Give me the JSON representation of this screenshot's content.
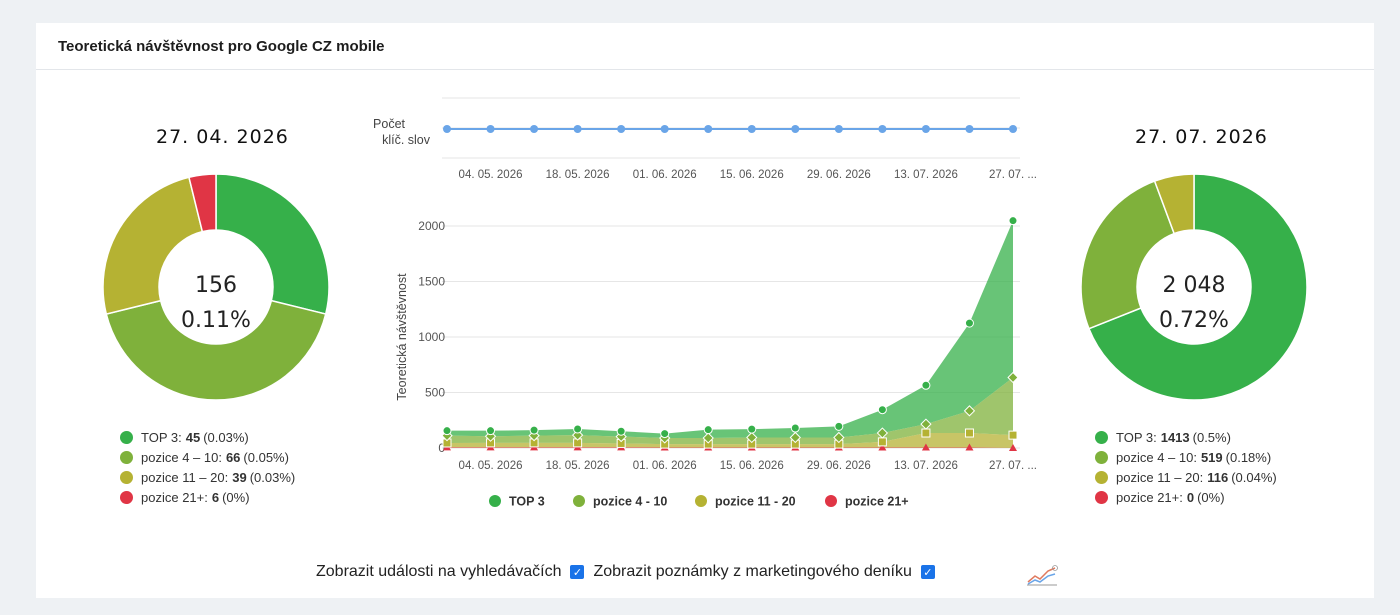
{
  "card": {
    "title": "Teoretická návštěvnost pro Google CZ mobile"
  },
  "left_pie": {
    "date": "27. 04. 2026",
    "total": "156",
    "percent": "0.11%",
    "legend": [
      {
        "label": "TOP 3:",
        "value": "45",
        "pct": "(0.03%)",
        "color": "#36b04a"
      },
      {
        "label": "pozice 4 – 10:",
        "value": "66",
        "pct": "(0.05%)",
        "color": "#7fb13b"
      },
      {
        "label": "pozice 11 – 20:",
        "value": "39",
        "pct": "(0.03%)",
        "color": "#b5b233"
      },
      {
        "label": "pozice 21+:",
        "value": "6",
        "pct": "(0%)",
        "color": "#e03545"
      }
    ]
  },
  "right_pie": {
    "date": "27. 07. 2026",
    "total": "2 048",
    "percent": "0.72%",
    "legend": [
      {
        "label": "TOP 3:",
        "value": "1413",
        "pct": "(0.5%)",
        "color": "#36b04a"
      },
      {
        "label": "pozice 4 – 10:",
        "value": "519",
        "pct": "(0.18%)",
        "color": "#7fb13b"
      },
      {
        "label": "pozice 11 – 20:",
        "value": "116",
        "pct": "(0.04%)",
        "color": "#b5b233"
      },
      {
        "label": "pozice 21+:",
        "value": "0",
        "pct": "(0%)",
        "color": "#e03545"
      }
    ]
  },
  "chart_data": [
    {
      "type": "pie",
      "title": "27. 04. 2026",
      "categories": [
        "TOP 3",
        "pozice 4 – 10",
        "pozice 11 – 20",
        "pozice 21+"
      ],
      "values": [
        45,
        66,
        39,
        6
      ],
      "colors": [
        "#36b04a",
        "#7fb13b",
        "#b5b233",
        "#e03545"
      ]
    },
    {
      "type": "line",
      "ylabel_line1": "Počet",
      "ylabel_line2": "klíč. slov",
      "x": [
        "27.04.2026",
        "04.05.2026",
        "11.05.2026",
        "18.05.2026",
        "25.05.2026",
        "01.06.2026",
        "08.06.2026",
        "15.06.2026",
        "22.06.2026",
        "29.06.2026",
        "06.07.2026",
        "13.07.2026",
        "20.07.2026",
        "27.07.2026"
      ],
      "series": [
        {
          "values": [
            1,
            1,
            1,
            1,
            1,
            1,
            1,
            1,
            1,
            1,
            1,
            1,
            1,
            1
          ],
          "color": "#6aa5e8"
        }
      ],
      "x_tick_labels": [
        "04. 05. 2026",
        "18. 05. 2026",
        "01. 06. 2026",
        "15. 06. 2026",
        "29. 06. 2026",
        "13. 07. 2026",
        "27. 07. ..."
      ]
    },
    {
      "type": "area",
      "ylabel": "Teoretická návštěvnost",
      "ylim": [
        0,
        2000
      ],
      "y_ticks": [
        0,
        500,
        1000,
        1500,
        2000
      ],
      "x": [
        "27.04.2026",
        "04.05.2026",
        "11.05.2026",
        "18.05.2026",
        "25.05.2026",
        "01.06.2026",
        "08.06.2026",
        "15.06.2026",
        "22.06.2026",
        "29.06.2026",
        "06.07.2026",
        "13.07.2026",
        "20.07.2026",
        "27.07.2026"
      ],
      "x_tick_labels": [
        "04. 05. 2026",
        "18. 05. 2026",
        "01. 06. 2026",
        "15. 06. 2026",
        "29. 06. 2026",
        "13. 07. 2026",
        "27. 07. ..."
      ],
      "stacked": true,
      "series": [
        {
          "name": "TOP 3",
          "color": "#36b04a",
          "values": [
            45,
            50,
            50,
            55,
            48,
            40,
            75,
            75,
            85,
            100,
            210,
            350,
            790,
            1413
          ]
        },
        {
          "name": "pozice 4 - 10",
          "color": "#7fb13b",
          "values": [
            66,
            60,
            65,
            70,
            62,
            55,
            55,
            60,
            60,
            60,
            80,
            80,
            200,
            519
          ]
        },
        {
          "name": "pozice 11 - 20",
          "color": "#b5b233",
          "values": [
            39,
            40,
            40,
            40,
            35,
            30,
            30,
            30,
            30,
            30,
            50,
            130,
            130,
            116
          ]
        },
        {
          "name": "pozice 21+",
          "color": "#e03545",
          "values": [
            6,
            6,
            6,
            6,
            6,
            5,
            5,
            5,
            5,
            5,
            5,
            5,
            5,
            0
          ]
        }
      ],
      "legend": "bottom",
      "grid": true
    },
    {
      "type": "pie",
      "title": "27. 07. 2026",
      "categories": [
        "TOP 3",
        "pozice 4 – 10",
        "pozice 11 – 20",
        "pozice 21+"
      ],
      "values": [
        1413,
        519,
        116,
        0
      ],
      "colors": [
        "#36b04a",
        "#7fb13b",
        "#b5b233",
        "#e03545"
      ]
    }
  ],
  "footer": {
    "events_label": "Zobrazit události na vyhledávačích",
    "events_checked": true,
    "notes_label": "Zobrazit poznámky z marketingového deníku",
    "notes_checked": true,
    "chart_icon": "line-chart-icon"
  }
}
